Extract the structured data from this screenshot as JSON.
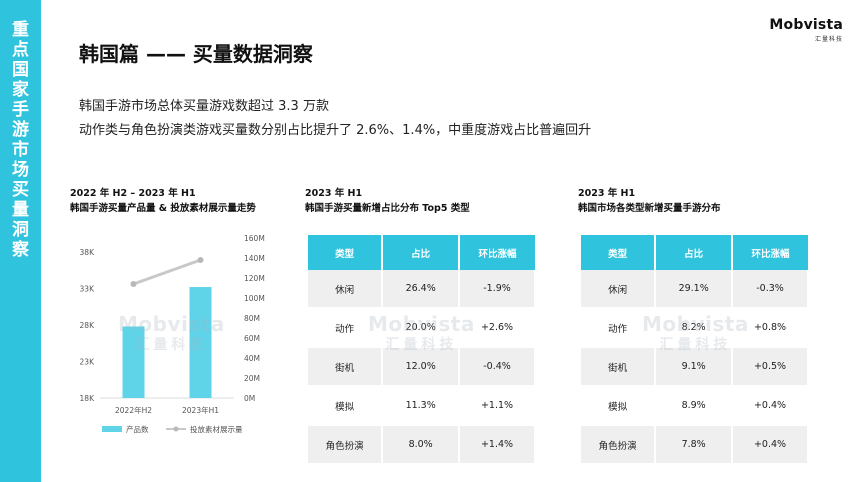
{
  "sidebar": {
    "title": "重点国家手游市场买量洞察"
  },
  "logo": {
    "brand": "Mobvista",
    "sub": "汇量科技"
  },
  "header": {
    "title": "韩国篇 —— 买量数据洞察"
  },
  "summary": {
    "line1": "韩国手游市场总体买量游戏数超过 3.3 万款",
    "line2": "动作类与角色扮演类游戏买量数分别占比提升了 2.6%、1.4%，中重度游戏占比普遍回升"
  },
  "watermark": {
    "brand": "Mobvista",
    "sub": "汇量科技"
  },
  "section1": {
    "period": "2022 年 H2 – 2023 年 H1",
    "title": "韩国手游买量产品量 & 投放素材展示量走势"
  },
  "section2": {
    "period": "2023 年 H1",
    "title": "韩国手游买量新增占比分布 Top5 类型"
  },
  "section3": {
    "period": "2023 年 H1",
    "title": "韩国市场各类型新增买量手游分布"
  },
  "chart_data": {
    "type": "bar",
    "categories": [
      "2022年H2",
      "2023年H1"
    ],
    "series": [
      {
        "name": "产品数",
        "type": "bar",
        "axis": "left",
        "values": [
          27800,
          33200
        ],
        "color": "#5fd3e8"
      },
      {
        "name": "投放素材展示量",
        "type": "line",
        "axis": "right",
        "values": [
          114,
          138
        ],
        "unit": "M",
        "color": "#c8c8c8"
      }
    ],
    "left_axis": {
      "ticks": [
        "18K",
        "23K",
        "28K",
        "33K",
        "38K"
      ],
      "ylim": [
        18000,
        38000
      ]
    },
    "right_axis": {
      "ticks": [
        "0M",
        "20M",
        "40M",
        "60M",
        "80M",
        "100M",
        "120M",
        "140M",
        "160M"
      ],
      "ylim": [
        0,
        160
      ]
    },
    "legend": [
      "产品数",
      "投放素材展示量"
    ],
    "legend_position": "bottom",
    "grid": false
  },
  "table1": {
    "headers": [
      "类型",
      "占比",
      "环比涨幅"
    ],
    "rows": [
      [
        "休闲",
        "26.4%",
        "-1.9%"
      ],
      [
        "动作",
        "20.0%",
        "+2.6%"
      ],
      [
        "街机",
        "12.0%",
        "-0.4%"
      ],
      [
        "模拟",
        "11.3%",
        "+1.1%"
      ],
      [
        "角色扮演",
        "8.0%",
        "+1.4%"
      ]
    ]
  },
  "table2": {
    "headers": [
      "类型",
      "占比",
      "环比涨幅"
    ],
    "rows": [
      [
        "休闲",
        "29.1%",
        "-0.3%"
      ],
      [
        "动作",
        "8.2%",
        "+0.8%"
      ],
      [
        "街机",
        "9.1%",
        "+0.5%"
      ],
      [
        "模拟",
        "8.9%",
        "+0.4%"
      ],
      [
        "角色扮演",
        "7.8%",
        "+0.4%"
      ]
    ]
  }
}
